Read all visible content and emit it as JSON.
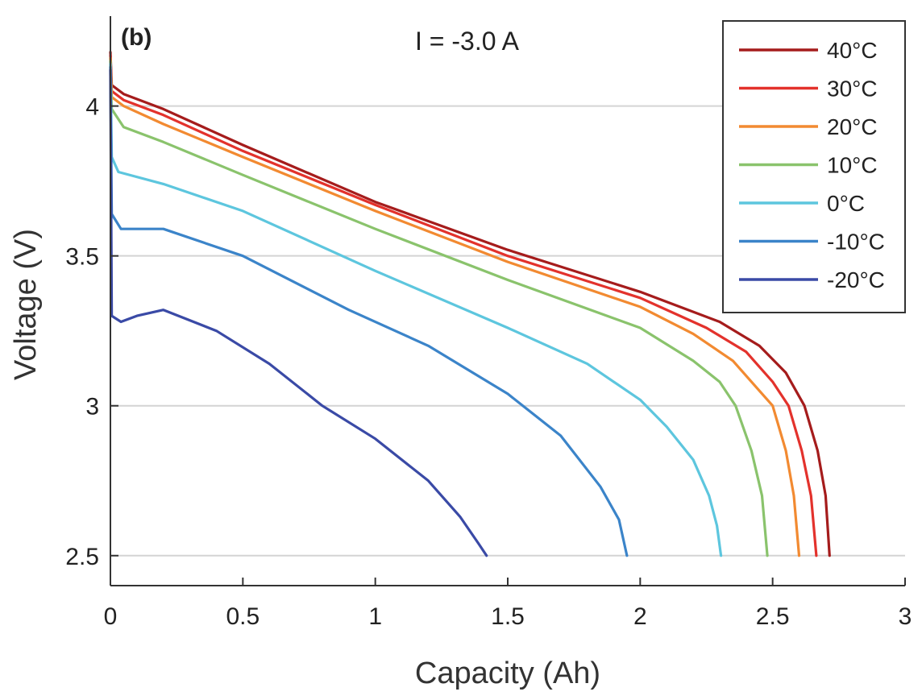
{
  "chart_data": {
    "type": "line",
    "panel_label": "(b)",
    "annotation": "I = -3.0 A",
    "xlabel": "Capacity (Ah)",
    "ylabel": "Voltage (V)",
    "xlim": [
      0,
      3
    ],
    "ylim": [
      2.4,
      4.3
    ],
    "xticks": [
      0,
      0.5,
      1,
      1.5,
      2,
      2.5,
      3
    ],
    "xtick_labels": [
      "0",
      "0.5",
      "1",
      "1.5",
      "2",
      "2.5",
      "3"
    ],
    "yticks": [
      2.5,
      3,
      3.5,
      4
    ],
    "ytick_labels": [
      "2.5",
      "3",
      "3.5",
      "4"
    ],
    "grid": "horizontal",
    "legend_position": "top-right",
    "series": [
      {
        "name": "40°C",
        "color": "#a51c1c",
        "points": [
          [
            0,
            4.18
          ],
          [
            0.005,
            4.07
          ],
          [
            0.05,
            4.04
          ],
          [
            0.2,
            3.99
          ],
          [
            0.5,
            3.87
          ],
          [
            1.0,
            3.68
          ],
          [
            1.5,
            3.52
          ],
          [
            2.0,
            3.38
          ],
          [
            2.3,
            3.28
          ],
          [
            2.45,
            3.2
          ],
          [
            2.55,
            3.11
          ],
          [
            2.62,
            3.0
          ],
          [
            2.67,
            2.85
          ],
          [
            2.7,
            2.7
          ],
          [
            2.715,
            2.5
          ]
        ]
      },
      {
        "name": "30°C",
        "color": "#e3322c",
        "points": [
          [
            0,
            4.17
          ],
          [
            0.005,
            4.05
          ],
          [
            0.05,
            4.02
          ],
          [
            0.2,
            3.97
          ],
          [
            0.5,
            3.85
          ],
          [
            1.0,
            3.67
          ],
          [
            1.5,
            3.5
          ],
          [
            2.0,
            3.36
          ],
          [
            2.25,
            3.26
          ],
          [
            2.4,
            3.18
          ],
          [
            2.5,
            3.08
          ],
          [
            2.56,
            3.0
          ],
          [
            2.61,
            2.85
          ],
          [
            2.645,
            2.7
          ],
          [
            2.665,
            2.5
          ]
        ]
      },
      {
        "name": "20°C",
        "color": "#f28a31",
        "points": [
          [
            0,
            4.16
          ],
          [
            0.005,
            4.03
          ],
          [
            0.05,
            4.0
          ],
          [
            0.2,
            3.94
          ],
          [
            0.5,
            3.83
          ],
          [
            1.0,
            3.65
          ],
          [
            1.5,
            3.48
          ],
          [
            2.0,
            3.33
          ],
          [
            2.2,
            3.24
          ],
          [
            2.35,
            3.15
          ],
          [
            2.45,
            3.05
          ],
          [
            2.5,
            3.0
          ],
          [
            2.55,
            2.85
          ],
          [
            2.58,
            2.7
          ],
          [
            2.6,
            2.5
          ]
        ]
      },
      {
        "name": "10°C",
        "color": "#8ac36c",
        "points": [
          [
            0,
            4.15
          ],
          [
            0.005,
            3.99
          ],
          [
            0.05,
            3.93
          ],
          [
            0.2,
            3.88
          ],
          [
            0.5,
            3.77
          ],
          [
            1.0,
            3.59
          ],
          [
            1.5,
            3.42
          ],
          [
            2.0,
            3.26
          ],
          [
            2.2,
            3.15
          ],
          [
            2.3,
            3.08
          ],
          [
            2.36,
            3.0
          ],
          [
            2.42,
            2.85
          ],
          [
            2.46,
            2.7
          ],
          [
            2.48,
            2.5
          ]
        ]
      },
      {
        "name": "0°C",
        "color": "#5dc6de",
        "points": [
          [
            0,
            4.14
          ],
          [
            0.005,
            3.83
          ],
          [
            0.03,
            3.78
          ],
          [
            0.2,
            3.74
          ],
          [
            0.5,
            3.65
          ],
          [
            1.0,
            3.45
          ],
          [
            1.5,
            3.26
          ],
          [
            1.8,
            3.14
          ],
          [
            2.0,
            3.02
          ],
          [
            2.1,
            2.93
          ],
          [
            2.2,
            2.82
          ],
          [
            2.26,
            2.7
          ],
          [
            2.29,
            2.6
          ],
          [
            2.305,
            2.5
          ]
        ]
      },
      {
        "name": "-10°C",
        "color": "#3b84c9",
        "points": [
          [
            0,
            4.13
          ],
          [
            0.005,
            3.64
          ],
          [
            0.04,
            3.59
          ],
          [
            0.2,
            3.59
          ],
          [
            0.5,
            3.5
          ],
          [
            0.9,
            3.32
          ],
          [
            1.2,
            3.2
          ],
          [
            1.5,
            3.04
          ],
          [
            1.7,
            2.9
          ],
          [
            1.85,
            2.73
          ],
          [
            1.92,
            2.62
          ],
          [
            1.95,
            2.5
          ]
        ]
      },
      {
        "name": "-20°C",
        "color": "#3a4aa6",
        "points": [
          [
            0,
            4.12
          ],
          [
            0.005,
            3.3
          ],
          [
            0.04,
            3.28
          ],
          [
            0.1,
            3.3
          ],
          [
            0.2,
            3.32
          ],
          [
            0.4,
            3.25
          ],
          [
            0.6,
            3.14
          ],
          [
            0.8,
            3.0
          ],
          [
            1.0,
            2.89
          ],
          [
            1.2,
            2.75
          ],
          [
            1.32,
            2.63
          ],
          [
            1.39,
            2.54
          ],
          [
            1.42,
            2.5
          ]
        ]
      }
    ]
  }
}
